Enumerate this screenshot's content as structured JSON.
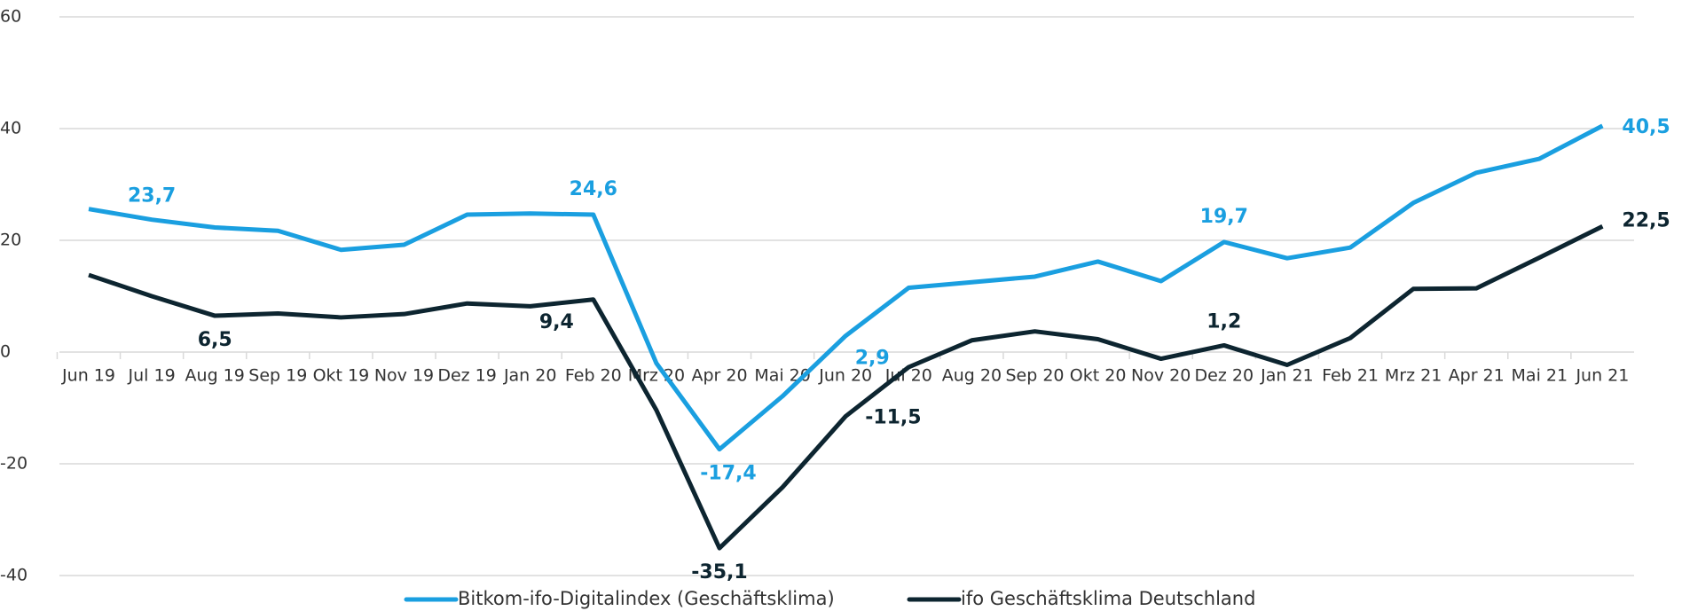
{
  "chart_data": {
    "type": "line",
    "categories": [
      "Jun 19",
      "Jul 19",
      "Aug 19",
      "Sep 19",
      "Okt 19",
      "Nov 19",
      "Dez 19",
      "Jan 20",
      "Feb 20",
      "Mrz 20",
      "Apr 20",
      "Mai 20",
      "Jun 20",
      "Jul 20",
      "Aug 20",
      "Sep 20",
      "Okt 20",
      "Nov 20",
      "Dez 20",
      "Jan 21",
      "Feb 21",
      "Mrz 21",
      "Apr 21",
      "Mai 21",
      "Jun 21"
    ],
    "series": [
      {
        "name": "Bitkom-ifo-Digitalindex (Geschäftsklima)",
        "color": "#1a9fe0",
        "values": [
          25.6,
          23.7,
          22.3,
          21.7,
          18.3,
          19.2,
          24.6,
          24.8,
          24.6,
          -2.0,
          -17.4,
          -7.9,
          2.9,
          11.5,
          12.5,
          13.5,
          16.2,
          12.7,
          19.7,
          16.8,
          18.7,
          26.7,
          32.1,
          34.6,
          40.5
        ],
        "value_labels": [
          null,
          "23,7",
          null,
          null,
          null,
          null,
          null,
          null,
          "24,6",
          null,
          "-17,4",
          null,
          "2,9",
          null,
          null,
          null,
          null,
          null,
          "19,7",
          null,
          null,
          null,
          null,
          null,
          "40,5"
        ]
      },
      {
        "name": "ifo Geschäftsklima Deutschland",
        "color": "#0d2530",
        "values": [
          13.8,
          10.0,
          6.5,
          6.9,
          6.2,
          6.8,
          8.7,
          8.2,
          9.4,
          -10.4,
          -35.1,
          -24.2,
          -11.5,
          -2.7,
          2.1,
          3.7,
          2.3,
          -1.2,
          1.2,
          -2.3,
          2.5,
          11.3,
          11.4,
          16.9,
          22.5
        ],
        "value_labels": [
          null,
          null,
          "6,5",
          null,
          null,
          null,
          null,
          null,
          "9,4",
          null,
          "-35,1",
          null,
          "-11,5",
          null,
          null,
          null,
          null,
          null,
          "1,2",
          null,
          null,
          null,
          null,
          null,
          "22,5"
        ]
      }
    ],
    "ylim": [
      -40,
      60
    ],
    "yticks": [
      -40,
      -20,
      0,
      20,
      40,
      60
    ],
    "grid": true,
    "legend": "bottom"
  }
}
